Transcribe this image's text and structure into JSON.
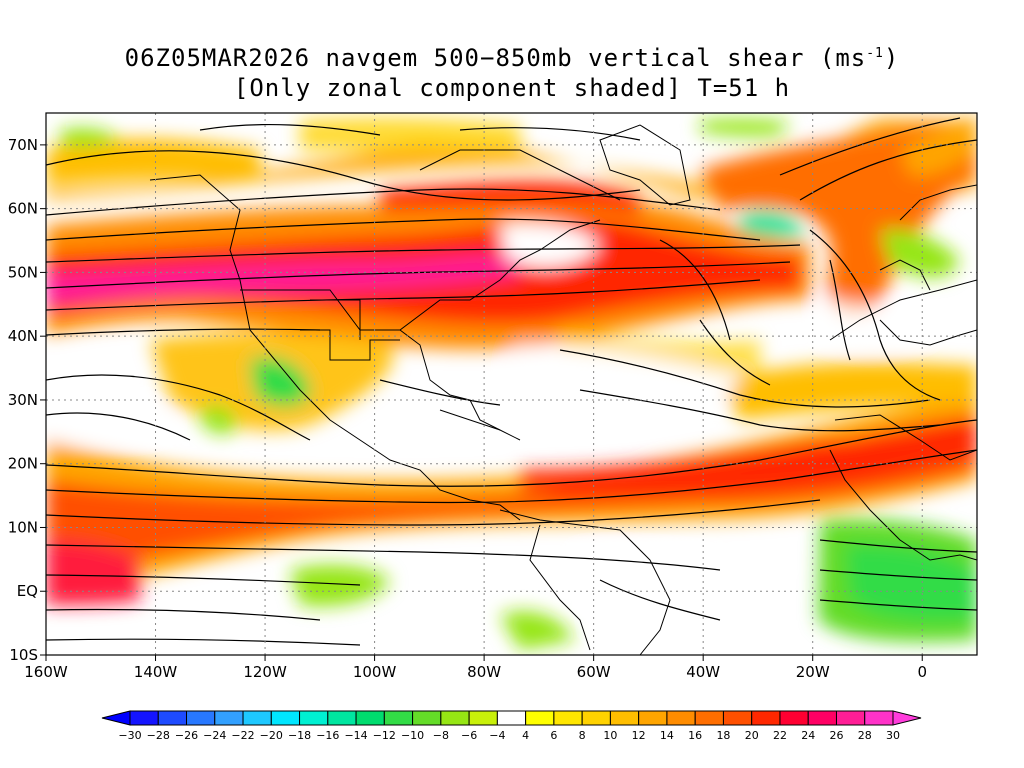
{
  "title": {
    "line1": "06Z05MAR2026 navgem 500−850mb vertical shear (ms",
    "line1_sup": "-1",
    "line1_end": ")",
    "line2": "[Only zonal component shaded] T=51 h"
  },
  "map": {
    "projection": "lat-lon",
    "lon_range": [
      -160,
      10
    ],
    "lat_range": [
      -10,
      75
    ],
    "lat_labels": [
      {
        "lat": 70,
        "text": "70N"
      },
      {
        "lat": 60,
        "text": "60N"
      },
      {
        "lat": 50,
        "text": "50N"
      },
      {
        "lat": 40,
        "text": "40N"
      },
      {
        "lat": 30,
        "text": "30N"
      },
      {
        "lat": 20,
        "text": "20N"
      },
      {
        "lat": 10,
        "text": "10N"
      },
      {
        "lat": 0,
        "text": "EQ"
      },
      {
        "lat": -10,
        "text": "10S"
      }
    ],
    "lon_labels": [
      {
        "lon": -160,
        "text": "160W"
      },
      {
        "lon": -140,
        "text": "140W"
      },
      {
        "lon": -120,
        "text": "120W"
      },
      {
        "lon": -100,
        "text": "100W"
      },
      {
        "lon": -80,
        "text": "80W"
      },
      {
        "lon": -60,
        "text": "60W"
      },
      {
        "lon": -40,
        "text": "40W"
      },
      {
        "lon": -20,
        "text": "20W"
      },
      {
        "lon": 0,
        "text": "0"
      }
    ],
    "grid": "dotted"
  },
  "colorbar": {
    "labels": [
      "-30",
      "-28",
      "-26",
      "-24",
      "-22",
      "-20",
      "-18",
      "-16",
      "-14",
      "-12",
      "-10",
      "-8",
      "-6",
      "-4",
      "4",
      "6",
      "8",
      "10",
      "12",
      "14",
      "16",
      "18",
      "20",
      "22",
      "24",
      "26",
      "28",
      "30"
    ],
    "colors": [
      "#1414ff",
      "#1e4bff",
      "#2878ff",
      "#32a0ff",
      "#1ec8ff",
      "#00e6ff",
      "#00f0d2",
      "#00e6a0",
      "#00dc6e",
      "#32dc46",
      "#64dc28",
      "#96e614",
      "#c8f00a",
      "#ffffff",
      "#ffff00",
      "#ffe600",
      "#ffd200",
      "#ffbe00",
      "#ffa500",
      "#ff8c00",
      "#ff6e00",
      "#ff5000",
      "#ff2800",
      "#ff0032",
      "#ff0064",
      "#ff1e96",
      "#ff32c8"
    ],
    "end_low": "#0000ff",
    "end_high": "#ff3cdc"
  }
}
